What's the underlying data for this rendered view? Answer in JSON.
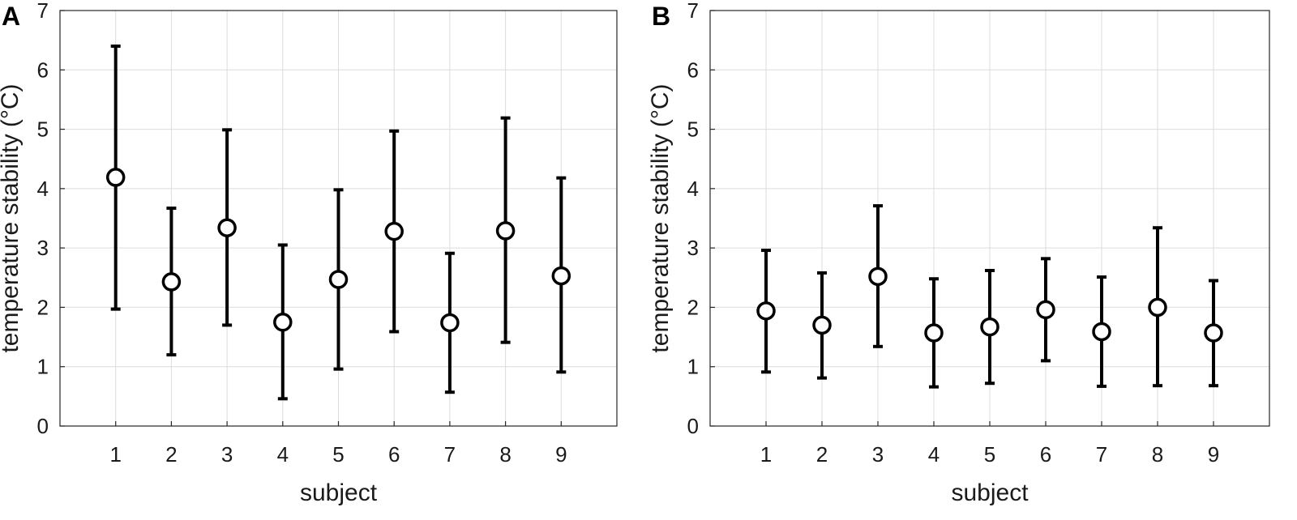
{
  "chart_data": [
    {
      "type": "scatter",
      "panel": "A",
      "title": "",
      "xlabel": "subject",
      "ylabel": "temperature stability (°C)",
      "xlim": [
        0,
        10
      ],
      "ylim": [
        0,
        7
      ],
      "x_ticks": [
        "1",
        "2",
        "3",
        "4",
        "5",
        "6",
        "7",
        "8",
        "9"
      ],
      "y_ticks": [
        "0",
        "1",
        "2",
        "3",
        "4",
        "5",
        "6",
        "7"
      ],
      "grid": true,
      "marker_color": "#000000",
      "series": [
        {
          "x": [
            1,
            2,
            3,
            4,
            5,
            6,
            7,
            8,
            9
          ],
          "y": [
            4.19,
            2.43,
            3.34,
            1.75,
            2.47,
            3.28,
            1.74,
            3.29,
            2.53
          ],
          "lower": [
            1.97,
            1.2,
            1.7,
            0.46,
            0.96,
            1.59,
            0.57,
            1.41,
            0.91
          ],
          "upper": [
            6.4,
            3.67,
            4.99,
            3.05,
            3.98,
            4.97,
            2.91,
            5.19,
            4.18
          ]
        }
      ]
    },
    {
      "type": "scatter",
      "panel": "B",
      "title": "",
      "xlabel": "subject",
      "ylabel": "temperature stability (°C)",
      "xlim": [
        0,
        10
      ],
      "ylim": [
        0,
        7
      ],
      "x_ticks": [
        "1",
        "2",
        "3",
        "4",
        "5",
        "6",
        "7",
        "8",
        "9"
      ],
      "y_ticks": [
        "0",
        "1",
        "2",
        "3",
        "4",
        "5",
        "6",
        "7"
      ],
      "grid": true,
      "marker_color": "#000000",
      "series": [
        {
          "x": [
            1,
            2,
            3,
            4,
            5,
            6,
            7,
            8,
            9
          ],
          "y": [
            1.94,
            1.7,
            2.52,
            1.57,
            1.67,
            1.96,
            1.59,
            2.0,
            1.57
          ],
          "lower": [
            0.91,
            0.81,
            1.34,
            0.66,
            0.72,
            1.1,
            0.67,
            0.68,
            0.68
          ],
          "upper": [
            2.96,
            2.58,
            3.71,
            2.48,
            2.62,
            2.82,
            2.51,
            3.34,
            2.45
          ]
        }
      ]
    }
  ]
}
